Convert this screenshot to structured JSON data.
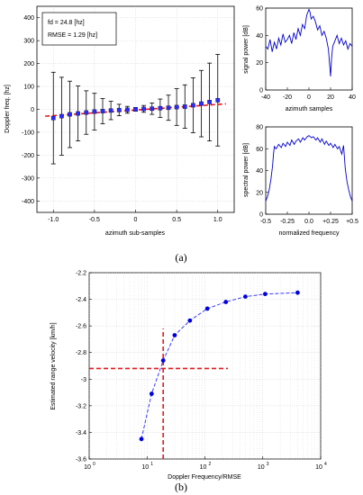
{
  "captions": {
    "a": "(a)",
    "b": "(b)"
  },
  "chart_data": [
    {
      "id": "doppler_vs_subsamples",
      "type": "scatter",
      "annotations": [
        "fd = 24.8 [hz]",
        "RMSE = 1.29 [hz]"
      ],
      "xlabel": "azimuth sub-samples",
      "ylabel": "Doppler freq. [hz]",
      "xlim": [
        -1.2,
        1.2
      ],
      "ylim": [
        -450,
        450
      ],
      "xticks": [
        -1.0,
        -0.5,
        0,
        0.5,
        1.0
      ],
      "xtick_labels": [
        "-1.0",
        "-0.5",
        "0",
        "0.5",
        "1.0"
      ],
      "yticks": [
        -400,
        -300,
        -200,
        -100,
        0,
        100,
        200,
        300,
        400
      ],
      "ytick_labels": [
        "-400",
        "-300",
        "-200",
        "-100",
        "0",
        "100",
        "200",
        "300",
        "400"
      ],
      "grid": true,
      "points": {
        "x": [
          -1.0,
          -0.9,
          -0.8,
          -0.7,
          -0.6,
          -0.5,
          -0.4,
          -0.3,
          -0.2,
          -0.1,
          0.0,
          0.1,
          0.2,
          0.3,
          0.4,
          0.5,
          0.6,
          0.7,
          0.8,
          0.9,
          1.0
        ],
        "y": [
          -38,
          -30,
          -22,
          -18,
          -14,
          -10,
          -8,
          -5,
          -3,
          -2,
          0,
          2,
          3,
          5,
          7,
          10,
          12,
          18,
          25,
          32,
          40
        ],
        "err": [
          200,
          170,
          145,
          120,
          95,
          80,
          55,
          40,
          25,
          15,
          8,
          15,
          25,
          40,
          55,
          80,
          95,
          120,
          145,
          170,
          200
        ]
      },
      "fit_line": {
        "x": [
          -1.1,
          1.1
        ],
        "y": [
          -30,
          24
        ]
      }
    },
    {
      "id": "signal_power",
      "type": "line",
      "xlabel": "azimuth samples",
      "ylabel": "signal power [dB]",
      "xlim": [
        -40,
        40
      ],
      "ylim": [
        0,
        60
      ],
      "xticks": [
        -40,
        -20,
        0,
        20,
        40
      ],
      "xtick_labels": [
        "-40",
        "-20",
        "0",
        "20",
        "40"
      ],
      "yticks": [
        0,
        20,
        40,
        60
      ],
      "ytick_labels": [
        "0",
        "20",
        "40",
        "60"
      ],
      "x": [
        -40,
        -38,
        -36,
        -34,
        -32,
        -30,
        -28,
        -26,
        -24,
        -22,
        -20,
        -18,
        -16,
        -14,
        -12,
        -10,
        -8,
        -6,
        -4,
        -2,
        0,
        1,
        2,
        4,
        6,
        8,
        10,
        12,
        14,
        16,
        18,
        19,
        20,
        21,
        22,
        24,
        26,
        28,
        30,
        32,
        34,
        36,
        38,
        40
      ],
      "y": [
        32,
        30,
        37,
        28,
        35,
        30,
        38,
        33,
        41,
        35,
        37,
        40,
        34,
        42,
        37,
        45,
        40,
        48,
        45,
        55,
        59,
        57,
        52,
        54,
        50,
        44,
        47,
        40,
        43,
        38,
        30,
        20,
        10,
        24,
        32,
        36,
        40,
        34,
        38,
        33,
        36,
        30,
        34,
        32
      ]
    },
    {
      "id": "spectral_power",
      "type": "line",
      "xlabel": "normalized frequency",
      "ylabel": "spectral power [dB]",
      "xlim": [
        -0.5,
        0.5
      ],
      "ylim": [
        0,
        80
      ],
      "xticks": [
        -0.5,
        -0.25,
        0.0,
        0.25,
        0.5
      ],
      "xtick_labels": [
        "-0.5",
        "-0.25",
        "0.0",
        "+0.25",
        "+0.5"
      ],
      "yticks": [
        0,
        20,
        40,
        60,
        80
      ],
      "ytick_labels": [
        "0",
        "20",
        "40",
        "60",
        "80"
      ],
      "x": [
        -0.5,
        -0.48,
        -0.46,
        -0.44,
        -0.42,
        -0.41,
        -0.4,
        -0.38,
        -0.35,
        -0.32,
        -0.3,
        -0.27,
        -0.25,
        -0.22,
        -0.2,
        -0.17,
        -0.15,
        -0.12,
        -0.1,
        -0.07,
        -0.05,
        -0.02,
        0.0,
        0.03,
        0.05,
        0.08,
        0.1,
        0.13,
        0.15,
        0.18,
        0.2,
        0.23,
        0.25,
        0.28,
        0.3,
        0.33,
        0.35,
        0.38,
        0.4,
        0.41,
        0.42,
        0.44,
        0.46,
        0.48,
        0.5
      ],
      "y": [
        12,
        16,
        22,
        32,
        45,
        55,
        62,
        60,
        64,
        61,
        65,
        62,
        66,
        63,
        68,
        64,
        67,
        69,
        66,
        70,
        68,
        71,
        72,
        70,
        71,
        68,
        70,
        66,
        69,
        64,
        67,
        63,
        65,
        61,
        64,
        60,
        62,
        55,
        63,
        52,
        42,
        30,
        22,
        16,
        12
      ]
    },
    {
      "id": "range_velocity",
      "type": "line",
      "xlabel": "Doppler Frequency/RMSE",
      "ylabel": "Estimated range velocity [km/h]",
      "xscale": "log",
      "xlim": [
        1,
        10000
      ],
      "ylim": [
        -3.6,
        -2.2
      ],
      "xticks": [
        1,
        10,
        100,
        1000,
        10000
      ],
      "xtick_labels": [
        "10^0",
        "10^1",
        "10^2",
        "10^3",
        "10^4"
      ],
      "yticks": [
        -3.6,
        -3.4,
        -3.2,
        -3.0,
        -2.8,
        -2.6,
        -2.4,
        -2.2
      ],
      "ytick_labels": [
        "-3.6",
        "-3.4",
        "-3.2",
        "-3",
        "-2.8",
        "-2.6",
        "-2.4",
        "-2.2"
      ],
      "grid": true,
      "x": [
        8,
        12,
        19,
        30,
        55,
        110,
        230,
        500,
        1100,
        4000
      ],
      "y": [
        -3.45,
        -3.11,
        -2.86,
        -2.67,
        -2.56,
        -2.47,
        -2.42,
        -2.38,
        -2.36,
        -2.35
      ],
      "crosshair": {
        "x": 19,
        "y": -2.92
      }
    }
  ]
}
